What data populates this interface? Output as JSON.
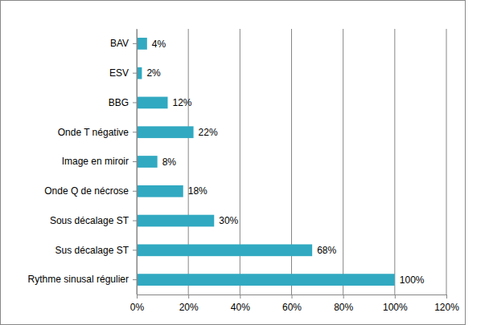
{
  "chart_data": {
    "type": "bar",
    "orientation": "horizontal",
    "categories": [
      "BAV",
      "ESV",
      "BBG",
      "Onde T négative",
      "Image en miroir",
      "Onde Q de nécrose",
      "Sous décalage ST",
      "Sus décalage ST",
      "Rythme sinusal régulier"
    ],
    "values": [
      4,
      2,
      12,
      22,
      8,
      18,
      30,
      68,
      100
    ],
    "value_labels": [
      "4%",
      "2%",
      "12%",
      "22%",
      "8%",
      "18%",
      "30%",
      "68%",
      "100%"
    ],
    "data_labels": true,
    "color": "#31a9c1",
    "xlim": [
      0,
      120
    ],
    "xticks": [
      {
        "value": 0,
        "label": "0%"
      },
      {
        "value": 20,
        "label": "20%"
      },
      {
        "value": 40,
        "label": "40%"
      },
      {
        "value": 60,
        "label": "60%"
      },
      {
        "value": 80,
        "label": "80%"
      },
      {
        "value": 100,
        "label": "100%"
      },
      {
        "value": 120,
        "label": "120%"
      }
    ],
    "grid": true
  }
}
